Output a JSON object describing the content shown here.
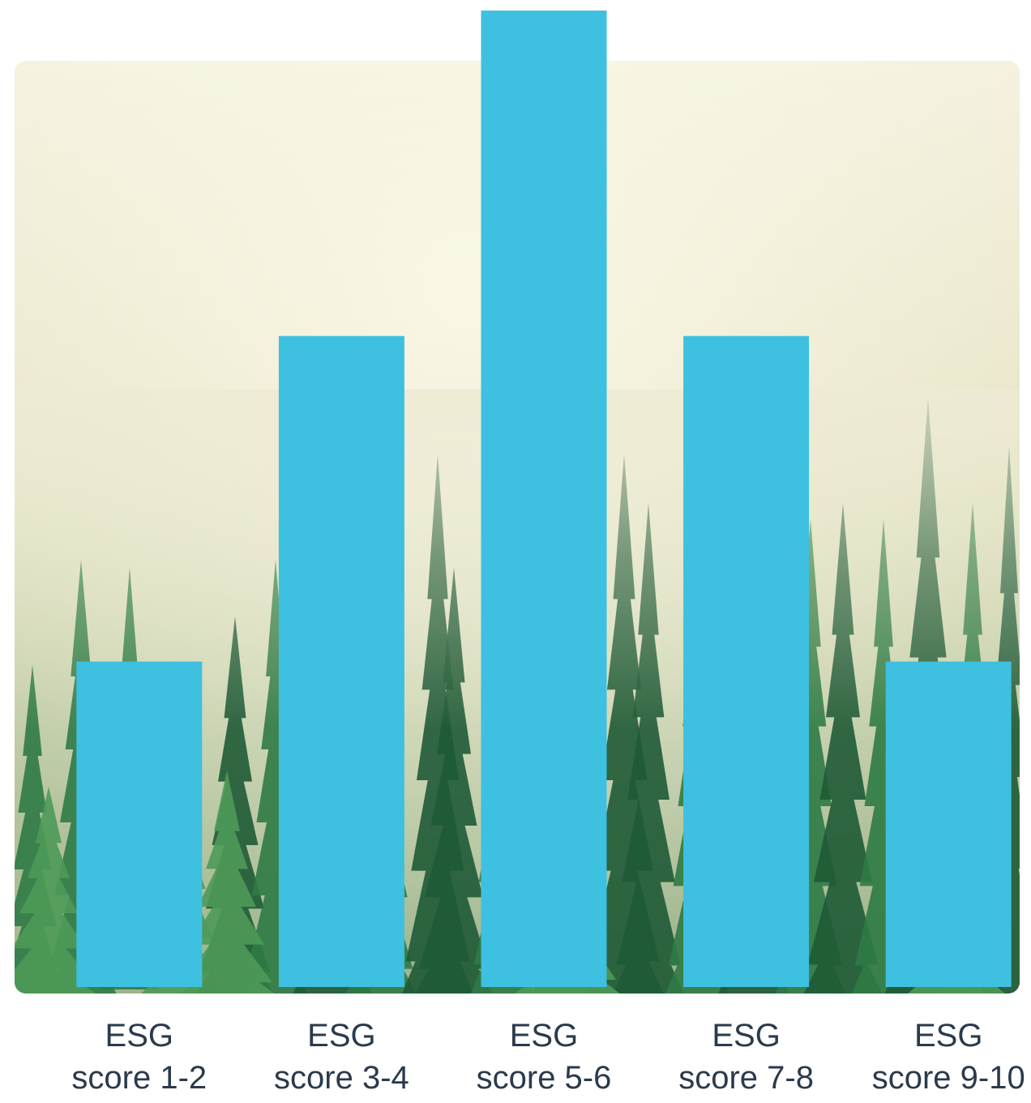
{
  "chart_data": {
    "type": "bar",
    "categories": [
      [
        "ESG",
        "score 1-2"
      ],
      [
        "ESG",
        "score 3-4"
      ],
      [
        "ESG",
        "score 5-6"
      ],
      [
        "ESG",
        "score 7-8"
      ],
      [
        "ESG",
        "score 9-10"
      ]
    ],
    "values": [
      1,
      2,
      3,
      2,
      1
    ],
    "ylim": [
      0,
      3
    ],
    "title": "",
    "xlabel": "",
    "ylabel": "",
    "grid": false,
    "legend": "none",
    "colors": {
      "bar": "#3EC0E0",
      "label_text": "#2B3A4C",
      "fog_light": "#F4F0DA",
      "fog_mid": "#DCDDB8",
      "tree_dark": "#1F5A36",
      "tree_mid": "#2F7A45",
      "tree_light": "#4E9A58"
    }
  }
}
